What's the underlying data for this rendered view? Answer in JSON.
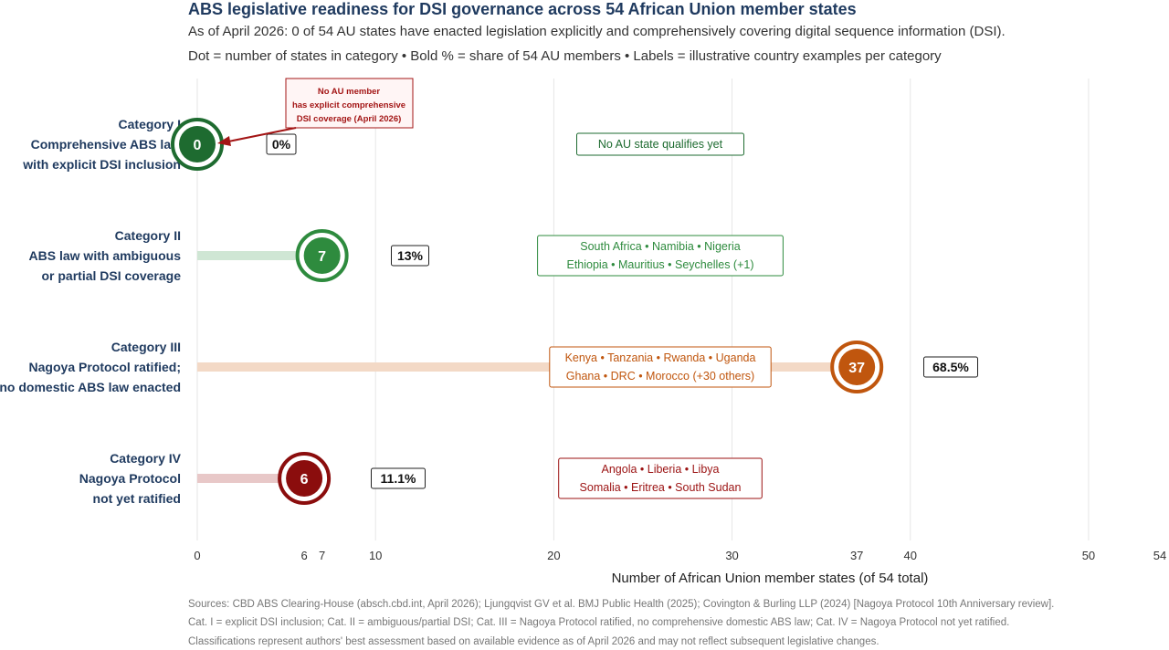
{
  "header": {
    "title": "ABS legislative readiness for DSI governance across 54 African Union member states",
    "subtitle": "As of April 2026: 0 of 54 AU states have enacted legislation explicitly and comprehensively covering digital sequence information (DSI).",
    "legend_note": "Dot = number of states in category • Bold % = share of 54 AU members • Labels = illustrative country examples per category"
  },
  "chart_data": {
    "type": "lollipop",
    "xlabel": "Number of African Union member states (of 54 total)",
    "xlim": [
      0,
      54
    ],
    "xticks": [
      0,
      6,
      7,
      10,
      20,
      30,
      37,
      40,
      50,
      54
    ],
    "gridlines": [
      0,
      10,
      20,
      30,
      40,
      50
    ],
    "categories": [
      {
        "label_lines": [
          "Category I",
          "Comprehensive ABS law",
          "with explicit DSI inclusion"
        ],
        "value": 0,
        "value_label": "0",
        "percent": "0%",
        "color": "#1e6b30",
        "bar_color": "#c9e4cf",
        "examples": [
          "No AU state qualifies yet"
        ],
        "example_color": "#1e6b30"
      },
      {
        "label_lines": [
          "Category II",
          "ABS law with ambiguous",
          "or partial DSI coverage"
        ],
        "value": 7,
        "value_label": "7",
        "percent": "13%",
        "color": "#2e8b3e",
        "bar_color": "#cfe6d4",
        "examples": [
          "South Africa • Namibia • Nigeria",
          "Ethiopia • Mauritius • Seychelles (+1)"
        ],
        "example_color": "#2e8b3e"
      },
      {
        "label_lines": [
          "Category III",
          "Nagoya Protocol ratified;",
          "no domestic ABS law enacted"
        ],
        "value": 37,
        "value_label": "37",
        "percent": "68.5%",
        "color": "#c0560e",
        "bar_color": "#f3d9c6",
        "examples": [
          "Kenya • Tanzania • Rwanda • Uganda",
          "Ghana • DRC • Morocco (+30 others)"
        ],
        "example_color": "#c0560e"
      },
      {
        "label_lines": [
          "Category IV",
          "Nagoya Protocol",
          "not yet ratified"
        ],
        "value": 6,
        "value_label": "6",
        "percent": "11.1%",
        "color": "#8b0d0d",
        "bar_color": "#e8c8c8",
        "examples": [
          "Angola • Liberia • Libya",
          "Somalia • Eritrea • South Sudan"
        ],
        "example_color": "#9b1212"
      }
    ],
    "annotation": {
      "lines": [
        "No AU member",
        "has explicit comprehensive",
        "DSI coverage (April 2026)"
      ],
      "color": "#a31515"
    }
  },
  "sources": {
    "line1": "Sources: CBD ABS Clearing-House (absch.cbd.int, April 2026); Ljungqvist GV et al. BMJ Public Health (2025); Covington & Burling LLP (2024) [Nagoya Protocol 10th Anniversary review].",
    "line2": "Cat. I = explicit DSI inclusion; Cat. II = ambiguous/partial DSI; Cat. III = Nagoya Protocol ratified, no comprehensive domestic ABS law; Cat. IV = Nagoya Protocol not yet ratified.",
    "line3": "Classifications represent authors' best assessment based on available evidence as of April 2026 and may not reflect subsequent legislative changes."
  }
}
